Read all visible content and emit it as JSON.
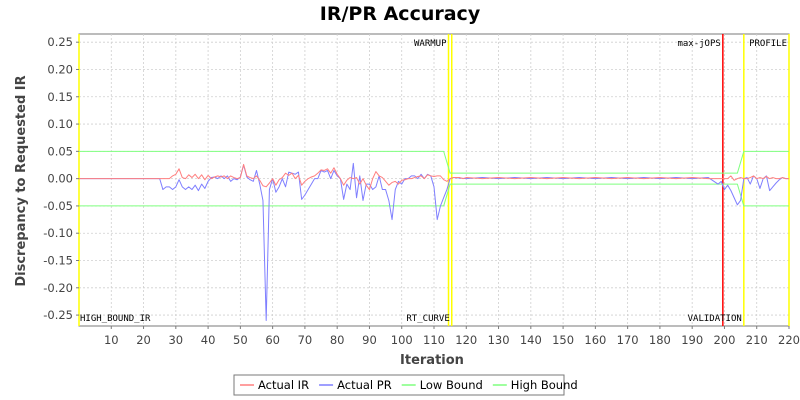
{
  "chart_data": {
    "type": "line",
    "title": "IR/PR Accuracy",
    "xlabel": "Iteration",
    "ylabel": "Discrepancy to Requested IR",
    "xlim": [
      0,
      220
    ],
    "ylim": [
      -0.27,
      0.265
    ],
    "x_ticks": [
      10,
      20,
      30,
      40,
      50,
      60,
      70,
      80,
      90,
      100,
      110,
      120,
      130,
      140,
      150,
      160,
      170,
      180,
      190,
      200,
      210,
      220
    ],
    "y_ticks": [
      0.25,
      0.2,
      0.15,
      0.1,
      0.05,
      0.0,
      -0.05,
      -0.1,
      -0.15,
      -0.2,
      -0.25
    ],
    "y_tick_labels": [
      "0.25",
      "0.20",
      "0.15",
      "0.10",
      "0.05",
      "0.00",
      "-0.05",
      "-0.10",
      "-0.15",
      "-0.20",
      "-0.25"
    ],
    "grid": true,
    "legend_position": "bottom",
    "markers": [
      {
        "x": 0,
        "label": "HIGH_BOUND_IR",
        "label_pos": "bottom",
        "color": "#ffff00"
      },
      {
        "x": 114.5,
        "label": "WARMUP",
        "label_pos": "top",
        "color": "#ffff00"
      },
      {
        "x": 115.5,
        "label": "RT_CURVE",
        "label_pos": "bottom",
        "color": "#ffff00"
      },
      {
        "x": 199.5,
        "label": "max-jOPS",
        "label_pos": "top",
        "color": "#ff0000"
      },
      {
        "x": 206,
        "label": "VALIDATION",
        "label_pos": "bottom",
        "color": "#ffff00"
      },
      {
        "x": 220,
        "label": "PROFILE",
        "label_pos": "top",
        "color": "#ffff00"
      }
    ],
    "series": [
      {
        "name": "Actual IR",
        "color": "#ff7f7f",
        "points": [
          [
            0,
            0
          ],
          [
            25,
            0
          ],
          [
            26,
            0
          ],
          [
            27,
            0
          ],
          [
            28,
            0
          ],
          [
            29,
            0.005
          ],
          [
            30,
            0.008
          ],
          [
            31,
            0.018
          ],
          [
            32,
            0.002
          ],
          [
            33,
            0
          ],
          [
            34,
            0.007
          ],
          [
            35,
            0.002
          ],
          [
            36,
            0.008
          ],
          [
            37,
            0
          ],
          [
            38,
            0.007
          ],
          [
            39,
            -0.002
          ],
          [
            40,
            0.006
          ],
          [
            41,
            0
          ],
          [
            42,
            0.003
          ],
          [
            43,
            0.005
          ],
          [
            44,
            0.003
          ],
          [
            45,
            0.005
          ],
          [
            46,
            0
          ],
          [
            47,
            0.005
          ],
          [
            48,
            0.002
          ],
          [
            49,
            0
          ],
          [
            50,
            0.002
          ],
          [
            51,
            0.026
          ],
          [
            52,
            0.005
          ],
          [
            53,
            0.002
          ],
          [
            54,
            0
          ],
          [
            55,
            0.005
          ],
          [
            56,
            -0.003
          ],
          [
            57,
            -0.013
          ],
          [
            58,
            -0.015
          ],
          [
            59,
            -0.008
          ],
          [
            60,
            0
          ],
          [
            61,
            -0.012
          ],
          [
            62,
            -0.002
          ],
          [
            63,
            0.002
          ],
          [
            64,
            0.01
          ],
          [
            65,
            0.006
          ],
          [
            66,
            0.01
          ],
          [
            67,
            0
          ],
          [
            68,
            0.006
          ],
          [
            69,
            -0.012
          ],
          [
            70,
            -0.005
          ],
          [
            71,
            0
          ],
          [
            72,
            0.003
          ],
          [
            73,
            0.005
          ],
          [
            74,
            0.01
          ],
          [
            75,
            0.016
          ],
          [
            76,
            0.015
          ],
          [
            77,
            0.018
          ],
          [
            78,
            0.01
          ],
          [
            79,
            0.02
          ],
          [
            80,
            0.008
          ],
          [
            81,
            0
          ],
          [
            82,
            -0.012
          ],
          [
            83,
            -0.003
          ],
          [
            84,
            0.002
          ],
          [
            85,
            0
          ],
          [
            86,
            0.002
          ],
          [
            87,
            -0.01
          ],
          [
            88,
            0
          ],
          [
            89,
            -0.012
          ],
          [
            90,
            -0.02
          ],
          [
            91,
            0
          ],
          [
            92,
            0.013
          ],
          [
            93,
            0.005
          ],
          [
            94,
            0.002
          ],
          [
            95,
            -0.005
          ],
          [
            96,
            -0.012
          ],
          [
            97,
            -0.007
          ],
          [
            98,
            -0.005
          ],
          [
            99,
            -0.01
          ],
          [
            100,
            -0.003
          ],
          [
            101,
            -0.002
          ],
          [
            102,
            0
          ],
          [
            103,
            0
          ],
          [
            104,
            0.002
          ],
          [
            105,
            0.004
          ],
          [
            106,
            0.005
          ],
          [
            107,
            0
          ],
          [
            108,
            0.007
          ],
          [
            109,
            0.005
          ],
          [
            110,
            0.004
          ],
          [
            111,
            0.005
          ],
          [
            112,
            0.005
          ],
          [
            113,
            -0.002
          ],
          [
            114,
            -0.005
          ],
          [
            115,
            0
          ],
          [
            116,
            0.002
          ],
          [
            117,
            0.002
          ],
          [
            118,
            0.002
          ],
          [
            119,
            0
          ],
          [
            120,
            0.002
          ],
          [
            125,
            0
          ],
          [
            130,
            0.002
          ],
          [
            135,
            0
          ],
          [
            140,
            0.002
          ],
          [
            145,
            0
          ],
          [
            150,
            0.002
          ],
          [
            155,
            0
          ],
          [
            160,
            0.002
          ],
          [
            165,
            0
          ],
          [
            170,
            0.002
          ],
          [
            175,
            0
          ],
          [
            180,
            0.002
          ],
          [
            185,
            0
          ],
          [
            190,
            0.002
          ],
          [
            195,
            0
          ],
          [
            198,
            0
          ],
          [
            200,
            0
          ],
          [
            201,
            0
          ],
          [
            202,
            0.005
          ],
          [
            203,
            -0.003
          ],
          [
            204,
            0
          ],
          [
            205,
            0.002
          ],
          [
            206,
            0
          ],
          [
            207,
            0
          ],
          [
            208,
            0.002
          ],
          [
            209,
            0.005
          ],
          [
            210,
            0
          ],
          [
            211,
            0.002
          ],
          [
            212,
            0
          ],
          [
            213,
            0.004
          ],
          [
            214,
            0
          ],
          [
            215,
            0.002
          ],
          [
            216,
            0
          ],
          [
            217,
            0
          ],
          [
            218,
            0.002
          ],
          [
            219,
            0
          ],
          [
            220,
            0
          ]
        ]
      },
      {
        "name": "Actual PR",
        "color": "#7f7fff",
        "points": [
          [
            0,
            0
          ],
          [
            25,
            0
          ],
          [
            26,
            -0.02
          ],
          [
            27,
            -0.015
          ],
          [
            28,
            -0.015
          ],
          [
            29,
            -0.02
          ],
          [
            30,
            -0.015
          ],
          [
            31,
            -0.002
          ],
          [
            32,
            -0.015
          ],
          [
            33,
            -0.02
          ],
          [
            34,
            -0.015
          ],
          [
            35,
            -0.02
          ],
          [
            36,
            -0.012
          ],
          [
            37,
            -0.022
          ],
          [
            38,
            -0.01
          ],
          [
            39,
            -0.018
          ],
          [
            40,
            -0.005
          ],
          [
            41,
            0.002
          ],
          [
            42,
            0.003
          ],
          [
            43,
            0
          ],
          [
            44,
            0.005
          ],
          [
            45,
            0
          ],
          [
            46,
            0.005
          ],
          [
            47,
            -0.005
          ],
          [
            48,
            0
          ],
          [
            49,
            -0.002
          ],
          [
            50,
            0.003
          ],
          [
            51,
            0.025
          ],
          [
            52,
            0.003
          ],
          [
            53,
            -0.002
          ],
          [
            54,
            -0.005
          ],
          [
            55,
            0.015
          ],
          [
            56,
            -0.01
          ],
          [
            57,
            -0.04
          ],
          [
            58,
            -0.26
          ],
          [
            59,
            -0.02
          ],
          [
            60,
            0
          ],
          [
            61,
            -0.025
          ],
          [
            62,
            -0.015
          ],
          [
            63,
            0
          ],
          [
            64,
            -0.015
          ],
          [
            65,
            0.012
          ],
          [
            66,
            0.01
          ],
          [
            67,
            0.008
          ],
          [
            68,
            0.012
          ],
          [
            69,
            -0.038
          ],
          [
            70,
            -0.03
          ],
          [
            71,
            -0.02
          ],
          [
            72,
            -0.01
          ],
          [
            73,
            0
          ],
          [
            74,
            0
          ],
          [
            75,
            0.015
          ],
          [
            76,
            0.012
          ],
          [
            77,
            0.015
          ],
          [
            78,
            0
          ],
          [
            79,
            0.015
          ],
          [
            80,
            0.005
          ],
          [
            81,
            0
          ],
          [
            82,
            -0.038
          ],
          [
            83,
            -0.01
          ],
          [
            84,
            -0.02
          ],
          [
            85,
            0.028
          ],
          [
            86,
            -0.035
          ],
          [
            87,
            0.005
          ],
          [
            88,
            -0.04
          ],
          [
            89,
            -0.01
          ],
          [
            90,
            -0.01
          ],
          [
            91,
            -0.02
          ],
          [
            92,
            -0.015
          ],
          [
            93,
            0.005
          ],
          [
            94,
            -0.02
          ],
          [
            95,
            -0.02
          ],
          [
            96,
            -0.04
          ],
          [
            97,
            -0.075
          ],
          [
            98,
            -0.02
          ],
          [
            99,
            -0.005
          ],
          [
            100,
            -0.01
          ],
          [
            101,
            0
          ],
          [
            102,
            0
          ],
          [
            103,
            0.005
          ],
          [
            104,
            0.005
          ],
          [
            105,
            0
          ],
          [
            106,
            0.008
          ],
          [
            107,
            0
          ],
          [
            108,
            0.008
          ],
          [
            109,
            0.005
          ],
          [
            110,
            -0.015
          ],
          [
            111,
            -0.075
          ],
          [
            112,
            -0.05
          ],
          [
            113,
            -0.035
          ],
          [
            114,
            -0.02
          ],
          [
            115,
            0
          ],
          [
            116,
            0.002
          ],
          [
            120,
            0
          ],
          [
            125,
            0.002
          ],
          [
            130,
            0
          ],
          [
            135,
            0.002
          ],
          [
            140,
            0
          ],
          [
            145,
            0.002
          ],
          [
            150,
            0
          ],
          [
            155,
            0.002
          ],
          [
            160,
            0
          ],
          [
            165,
            0.002
          ],
          [
            170,
            0
          ],
          [
            175,
            0.002
          ],
          [
            180,
            0
          ],
          [
            185,
            0.002
          ],
          [
            190,
            0
          ],
          [
            195,
            0.002
          ],
          [
            198,
            -0.01
          ],
          [
            199,
            -0.005
          ],
          [
            200,
            -0.02
          ],
          [
            201,
            -0.012
          ],
          [
            202,
            -0.022
          ],
          [
            203,
            -0.035
          ],
          [
            204,
            -0.048
          ],
          [
            205,
            -0.04
          ],
          [
            206,
            0
          ],
          [
            207,
            0.002
          ],
          [
            208,
            -0.01
          ],
          [
            209,
            0.005
          ],
          [
            210,
            0
          ],
          [
            211,
            -0.018
          ],
          [
            212,
            0
          ],
          [
            213,
            0.005
          ],
          [
            214,
            -0.022
          ],
          [
            215,
            -0.015
          ],
          [
            216,
            -0.008
          ],
          [
            217,
            -0.002
          ],
          [
            218,
            0.002
          ],
          [
            219,
            0
          ],
          [
            220,
            0
          ]
        ]
      },
      {
        "name": "Low Bound",
        "color": "#7fff7f",
        "points": [
          [
            0,
            -0.05
          ],
          [
            113,
            -0.05
          ],
          [
            115,
            -0.01
          ],
          [
            204,
            -0.01
          ],
          [
            206,
            -0.05
          ],
          [
            220,
            -0.05
          ]
        ]
      },
      {
        "name": "High Bound",
        "color": "#7fff7f",
        "points": [
          [
            0,
            0.05
          ],
          [
            113,
            0.05
          ],
          [
            115,
            0.01
          ],
          [
            204,
            0.01
          ],
          [
            206,
            0.05
          ],
          [
            220,
            0.05
          ]
        ]
      }
    ]
  }
}
